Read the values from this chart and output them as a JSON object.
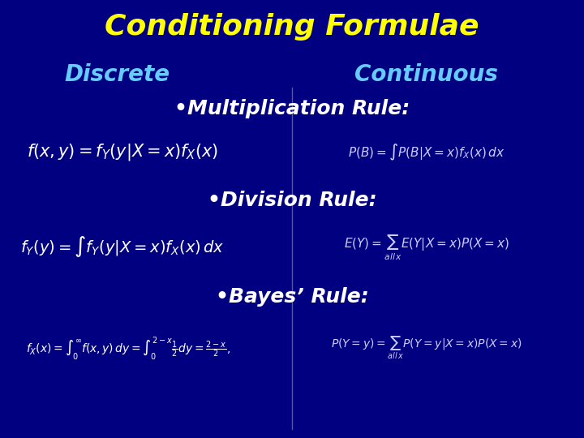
{
  "background_color": "#000080",
  "title": "Conditioning Formulae",
  "title_color": "#FFFF00",
  "title_fontsize": 26,
  "discrete_label": "Discrete",
  "continuous_label": "Continuous",
  "header_color": "#66CCFF",
  "header_fontsize": 20,
  "divider_color": "#5555AA",
  "rule_color": "#FFFFFF",
  "rule_fontsize": 18,
  "formula_color_left": "#FFFFFF",
  "formula_color_right": "#CCCCFF",
  "mult_rule_label": "•Multiplication Rule:",
  "div_rule_label": "•Division Rule:",
  "bayes_rule_label": "•Bayes’ Rule:",
  "mult_left": "$f(x, y) = f_Y(y|X = x)f_X(x)$",
  "mult_right": "$P(B) = \\int P(B|X = x)f_X(x)\\,dx$",
  "div_left": "$f_Y(y) = \\int f_Y(y|X = x)f_X(x)\\,dx$",
  "div_right": "$E(Y) = \\sum_{all\\,x} E(Y|X=x)P(X=x)$",
  "bayes_left": "$f_X(x) = \\int_0^{\\infty} f(x,y)\\,dy = \\int_0^{2-x} \\frac{1}{2}dy = \\frac{2-x}{2},$",
  "bayes_right": "$P(Y=y) = \\sum_{all\\,x} P(Y=y|X=x)P(X=x)$"
}
